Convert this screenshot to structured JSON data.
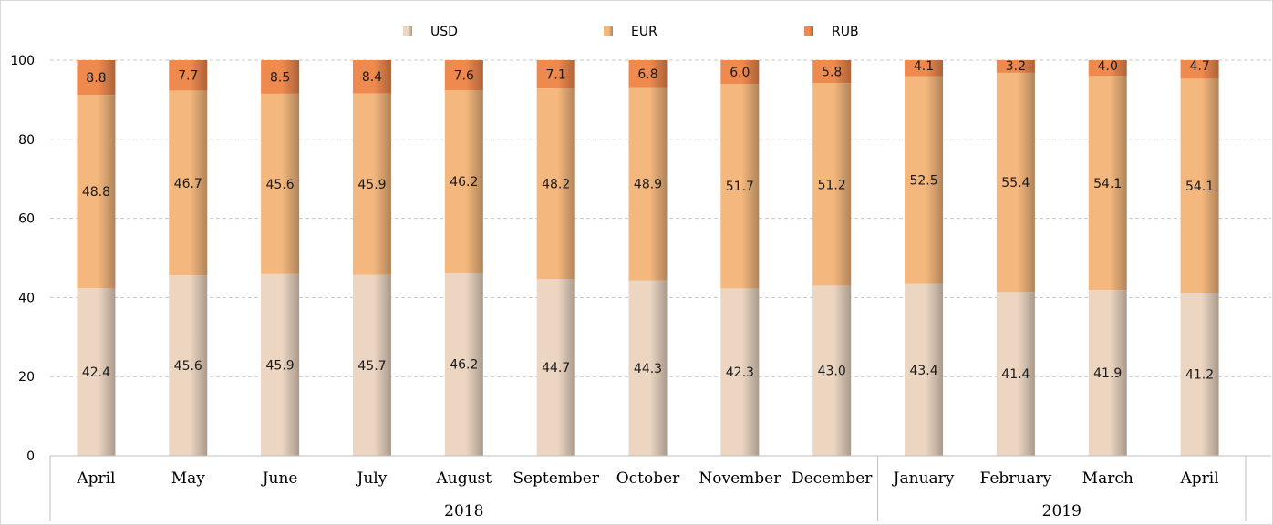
{
  "chart_data": {
    "type": "bar",
    "stacked": true,
    "title": "",
    "xlabel": "",
    "ylabel": "",
    "ylim": [
      0,
      100
    ],
    "yticks": [
      0,
      20,
      40,
      60,
      80,
      100
    ],
    "grid": true,
    "legend": "top-center",
    "categories": [
      "April",
      "May",
      "June",
      "July",
      "August",
      "September",
      "October",
      "November",
      "December",
      "January",
      "February",
      "March",
      "April"
    ],
    "groups": [
      {
        "label": "2018",
        "start": 0,
        "end": 8
      },
      {
        "label": "2019",
        "start": 9,
        "end": 12
      }
    ],
    "series": [
      {
        "name": "USD",
        "color": "#ecd6c2",
        "values": [
          42.4,
          45.6,
          45.9,
          45.7,
          46.2,
          44.7,
          44.3,
          42.3,
          43.0,
          43.4,
          41.4,
          41.9,
          41.2
        ],
        "labels": [
          "42.4",
          "45.6",
          "45.9",
          "45.7",
          "46.2",
          "44.7",
          "44.3",
          "42.3",
          "43.0",
          "43.4",
          "41.4",
          "41.9",
          "41.2"
        ]
      },
      {
        "name": "EUR",
        "color": "#f4b77d",
        "values": [
          48.8,
          46.7,
          45.6,
          45.9,
          46.2,
          48.2,
          48.9,
          51.7,
          51.2,
          52.5,
          55.4,
          54.1,
          54.1
        ],
        "labels": [
          "48.8",
          "46.7",
          "45.6",
          "45.9",
          "46.2",
          "48.2",
          "48.9",
          "51.7",
          "51.2",
          "52.5",
          "55.4",
          "54.1",
          "54.1"
        ]
      },
      {
        "name": "RUB",
        "color": "#ef8a4f",
        "values": [
          8.8,
          7.7,
          8.5,
          8.4,
          7.6,
          7.1,
          6.8,
          6.0,
          5.8,
          4.1,
          3.2,
          4.0,
          4.7
        ],
        "labels": [
          "8.8",
          "7.7",
          "8.5",
          "8.4",
          "7.6",
          "7.1",
          "6.8",
          "6.0",
          "5.8",
          "4.1",
          "3.2",
          "4.0",
          "4.7"
        ]
      }
    ]
  }
}
